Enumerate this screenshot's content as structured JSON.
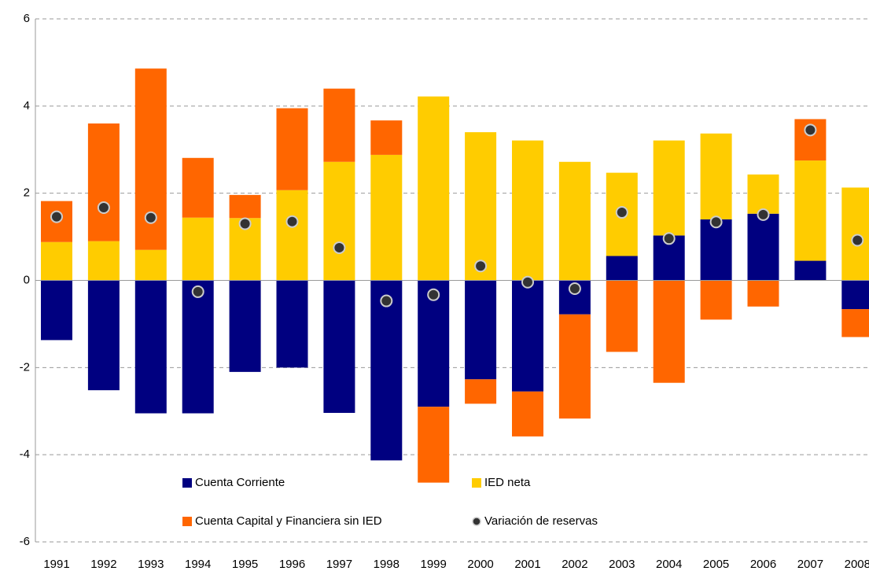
{
  "chart_data": {
    "type": "bar",
    "stacked": true,
    "categories": [
      "1991",
      "1992",
      "1993",
      "1994",
      "1995",
      "1996",
      "1997",
      "1998",
      "1999",
      "2000",
      "2001",
      "2002",
      "2003",
      "2004",
      "2005",
      "2006",
      "2007",
      "2008"
    ],
    "series": [
      {
        "name": "Cuenta Corriente",
        "color": "#000080",
        "values": [
          -1.37,
          -2.52,
          -3.05,
          -3.05,
          -2.1,
          -2.0,
          -3.04,
          -4.13,
          -2.9,
          -2.27,
          -2.55,
          -0.78,
          0.56,
          1.03,
          1.4,
          1.53,
          0.45,
          -0.66
        ]
      },
      {
        "name": "IED neta",
        "color": "#FFCC00",
        "values": [
          0.88,
          0.9,
          0.7,
          1.44,
          1.43,
          2.07,
          2.72,
          2.88,
          4.22,
          3.4,
          3.21,
          2.72,
          1.91,
          2.18,
          1.97,
          0.9,
          2.3,
          2.13
        ]
      },
      {
        "name": "Cuenta Capital y Financiera sin IED",
        "color": "#FF6600",
        "values": [
          0.94,
          2.7,
          4.16,
          1.37,
          0.53,
          1.88,
          1.68,
          0.79,
          -1.74,
          -0.56,
          -1.03,
          -2.39,
          -1.64,
          -2.35,
          -0.9,
          -0.6,
          0.95,
          -0.64
        ]
      },
      {
        "name": "Variación de reservas",
        "color": "#333333",
        "type": "scatter",
        "values": [
          1.46,
          1.67,
          1.44,
          -0.26,
          1.3,
          1.35,
          0.75,
          -0.47,
          -0.33,
          0.33,
          -0.04,
          -0.19,
          1.56,
          0.96,
          1.34,
          1.51,
          3.45,
          0.92
        ]
      }
    ],
    "ylim": [
      -6,
      6
    ],
    "yticks": [
      -6,
      -4,
      -2,
      0,
      2,
      4,
      6
    ],
    "grid": true
  }
}
